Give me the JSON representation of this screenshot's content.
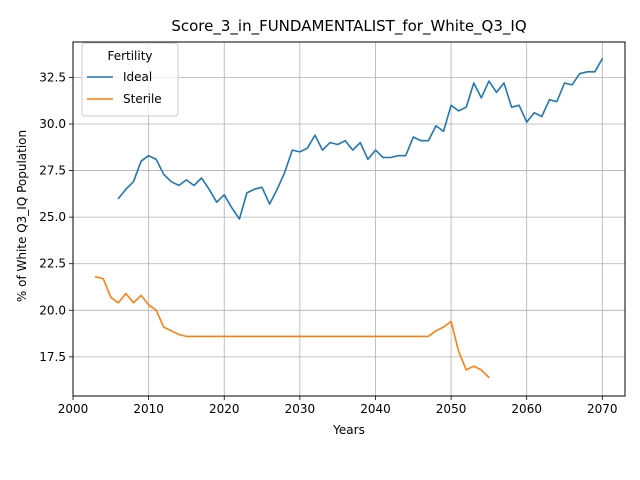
{
  "chart_data": {
    "type": "line",
    "title": "Score_3_in_FUNDAMENTALIST_for_White_Q3_IQ",
    "xlabel": "Years",
    "ylabel": "% of White Q3_IQ Population",
    "xlim": [
      2000,
      2073
    ],
    "ylim": [
      15.4,
      34.4
    ],
    "xticks": [
      2000,
      2010,
      2020,
      2030,
      2040,
      2050,
      2060,
      2070
    ],
    "yticks": [
      17.5,
      20.0,
      22.5,
      25.0,
      27.5,
      30.0,
      32.5
    ],
    "xtick_labels": [
      "2000",
      "2010",
      "2020",
      "2030",
      "2040",
      "2050",
      "2060",
      "2070"
    ],
    "ytick_labels": [
      "17.5",
      "20.0",
      "22.5",
      "25.0",
      "27.5",
      "30.0",
      "32.5"
    ],
    "grid": true,
    "legend": {
      "title": "Fertility",
      "position": "top-left"
    },
    "series": [
      {
        "name": "Ideal",
        "color": "#1f77b4",
        "x": [
          2006,
          2007,
          2008,
          2009,
          2010,
          2011,
          2012,
          2013,
          2014,
          2015,
          2016,
          2017,
          2018,
          2019,
          2020,
          2021,
          2022,
          2023,
          2024,
          2025,
          2026,
          2027,
          2028,
          2029,
          2030,
          2031,
          2032,
          2033,
          2034,
          2035,
          2036,
          2037,
          2038,
          2039,
          2040,
          2041,
          2042,
          2043,
          2044,
          2045,
          2046,
          2047,
          2048,
          2049,
          2050,
          2051,
          2052,
          2053,
          2054,
          2055,
          2056,
          2057,
          2058,
          2059,
          2060,
          2061,
          2062,
          2063,
          2064,
          2065,
          2066,
          2067,
          2068,
          2069,
          2070
        ],
        "y": [
          26.0,
          26.5,
          26.9,
          28.0,
          28.3,
          28.1,
          27.3,
          26.9,
          26.7,
          27.0,
          26.7,
          27.1,
          26.5,
          25.8,
          26.2,
          25.5,
          24.9,
          26.3,
          26.5,
          26.6,
          25.7,
          26.5,
          27.4,
          28.6,
          28.5,
          28.7,
          29.4,
          28.6,
          29.0,
          28.9,
          29.1,
          28.6,
          29.0,
          28.1,
          28.6,
          28.2,
          28.2,
          28.3,
          28.3,
          29.3,
          29.1,
          29.1,
          29.9,
          29.6,
          31.0,
          30.7,
          30.9,
          32.2,
          31.4,
          32.3,
          31.7,
          32.2,
          30.9,
          31.0,
          30.1,
          30.6,
          30.4,
          31.3,
          31.2,
          32.2,
          32.1,
          32.7,
          32.8,
          32.8,
          33.5
        ]
      },
      {
        "name": "Sterile",
        "color": "#ff7f0e",
        "x": [
          2003,
          2004,
          2005,
          2006,
          2007,
          2008,
          2009,
          2010,
          2011,
          2012,
          2013,
          2014,
          2015,
          2016,
          2017,
          2018,
          2019,
          2020,
          2021,
          2022,
          2023,
          2024,
          2025,
          2026,
          2027,
          2028,
          2029,
          2030,
          2031,
          2032,
          2033,
          2034,
          2035,
          2036,
          2037,
          2038,
          2039,
          2040,
          2041,
          2042,
          2043,
          2044,
          2045,
          2046,
          2047,
          2048,
          2049,
          2050,
          2051,
          2052,
          2053,
          2054,
          2055
        ],
        "y": [
          21.8,
          21.7,
          20.7,
          20.4,
          20.9,
          20.4,
          20.8,
          20.3,
          20.0,
          19.1,
          18.9,
          18.7,
          18.6,
          18.6,
          18.6,
          18.6,
          18.6,
          18.6,
          18.6,
          18.6,
          18.6,
          18.6,
          18.6,
          18.6,
          18.6,
          18.6,
          18.6,
          18.6,
          18.6,
          18.6,
          18.6,
          18.6,
          18.6,
          18.6,
          18.6,
          18.6,
          18.6,
          18.6,
          18.6,
          18.6,
          18.6,
          18.6,
          18.6,
          18.6,
          18.6,
          18.9,
          19.1,
          19.4,
          17.8,
          16.8,
          17.0,
          16.8,
          16.4
        ]
      }
    ]
  }
}
